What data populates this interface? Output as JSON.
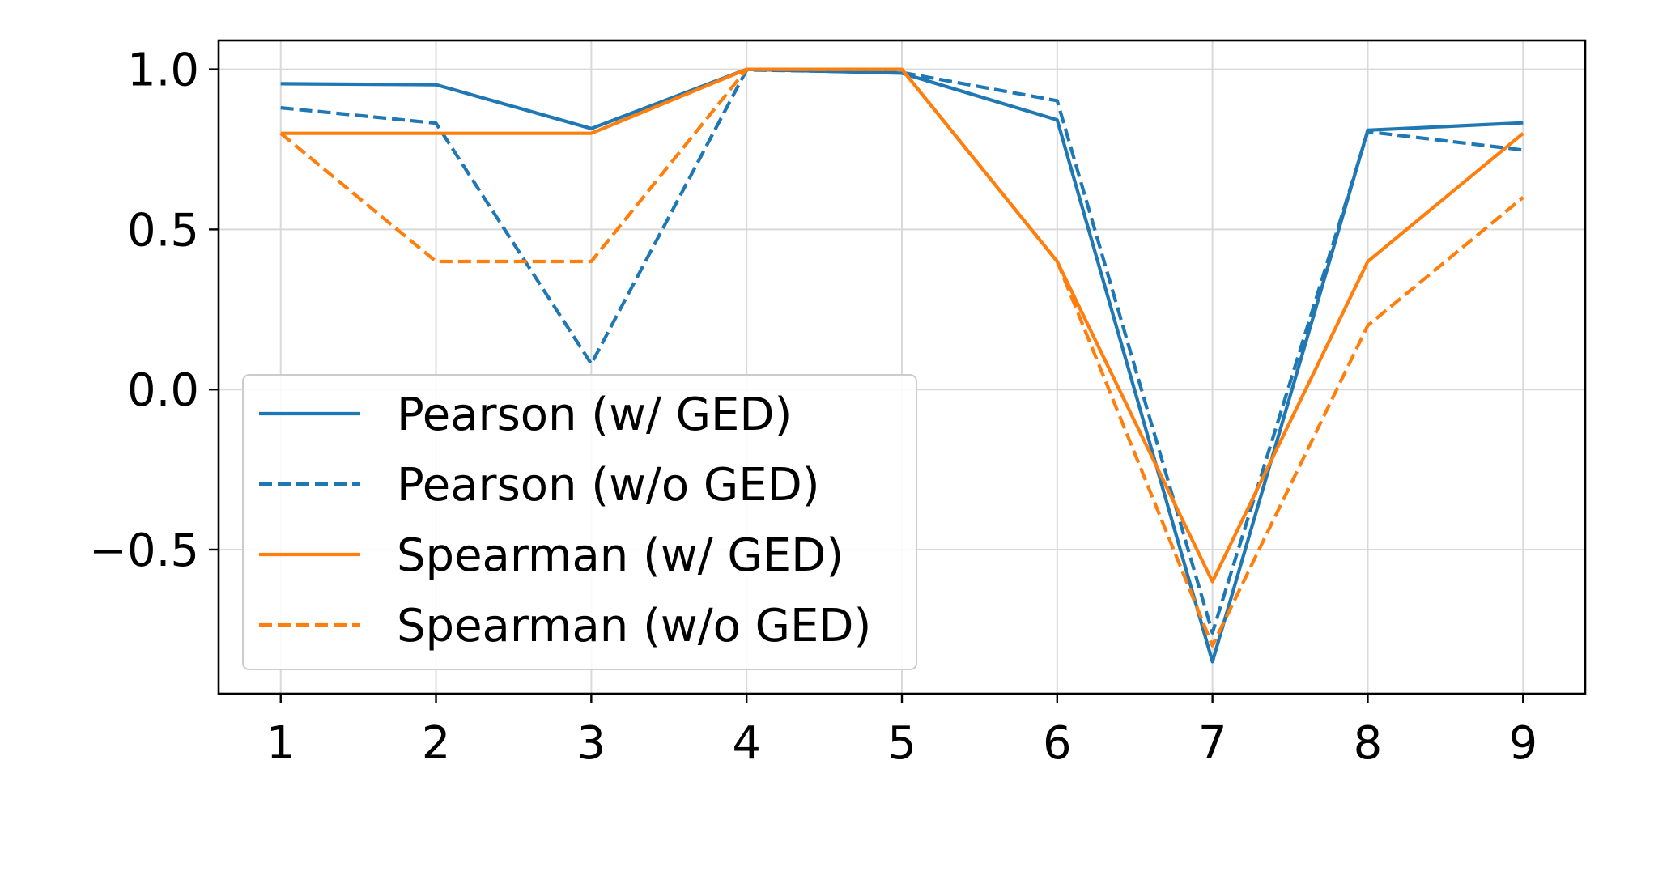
{
  "chart_data": {
    "type": "line",
    "title": "",
    "xlabel": "",
    "ylabel": "",
    "x": [
      1,
      2,
      3,
      4,
      5,
      6,
      7,
      8,
      9
    ],
    "xlim": [
      0.6,
      9.4
    ],
    "ylim": [
      -0.95,
      1.09
    ],
    "xticks": [
      1,
      2,
      3,
      4,
      5,
      6,
      7,
      8,
      9
    ],
    "yticks": [
      {
        "value": 1.0,
        "label": "1.0"
      },
      {
        "value": 0.5,
        "label": "0.5"
      },
      {
        "value": 0.0,
        "label": "0.0"
      },
      {
        "value": -0.5,
        "label": "−0.5"
      }
    ],
    "grid": true,
    "legend_position": "lower-left",
    "series": [
      {
        "name": "Pearson (w/ GED)",
        "color": "#1f77b4",
        "style": "solid",
        "values": [
          0.955,
          0.952,
          0.815,
          1.0,
          0.988,
          0.842,
          -0.85,
          0.81,
          0.833
        ]
      },
      {
        "name": "Pearson (w/o GED)",
        "color": "#1f77b4",
        "style": "dashed",
        "values": [
          0.88,
          0.832,
          0.08,
          0.998,
          0.99,
          0.902,
          -0.76,
          0.805,
          0.748
        ]
      },
      {
        "name": "Spearman (w/ GED)",
        "color": "#ff7f0e",
        "style": "solid",
        "values": [
          0.8,
          0.8,
          0.8,
          1.0,
          1.0,
          0.4,
          -0.6,
          0.4,
          0.8
        ]
      },
      {
        "name": "Spearman (w/o GED)",
        "color": "#ff7f0e",
        "style": "dashed",
        "values": [
          0.8,
          0.4,
          0.4,
          1.0,
          1.0,
          0.4,
          -0.8,
          0.2,
          0.6
        ]
      }
    ]
  }
}
